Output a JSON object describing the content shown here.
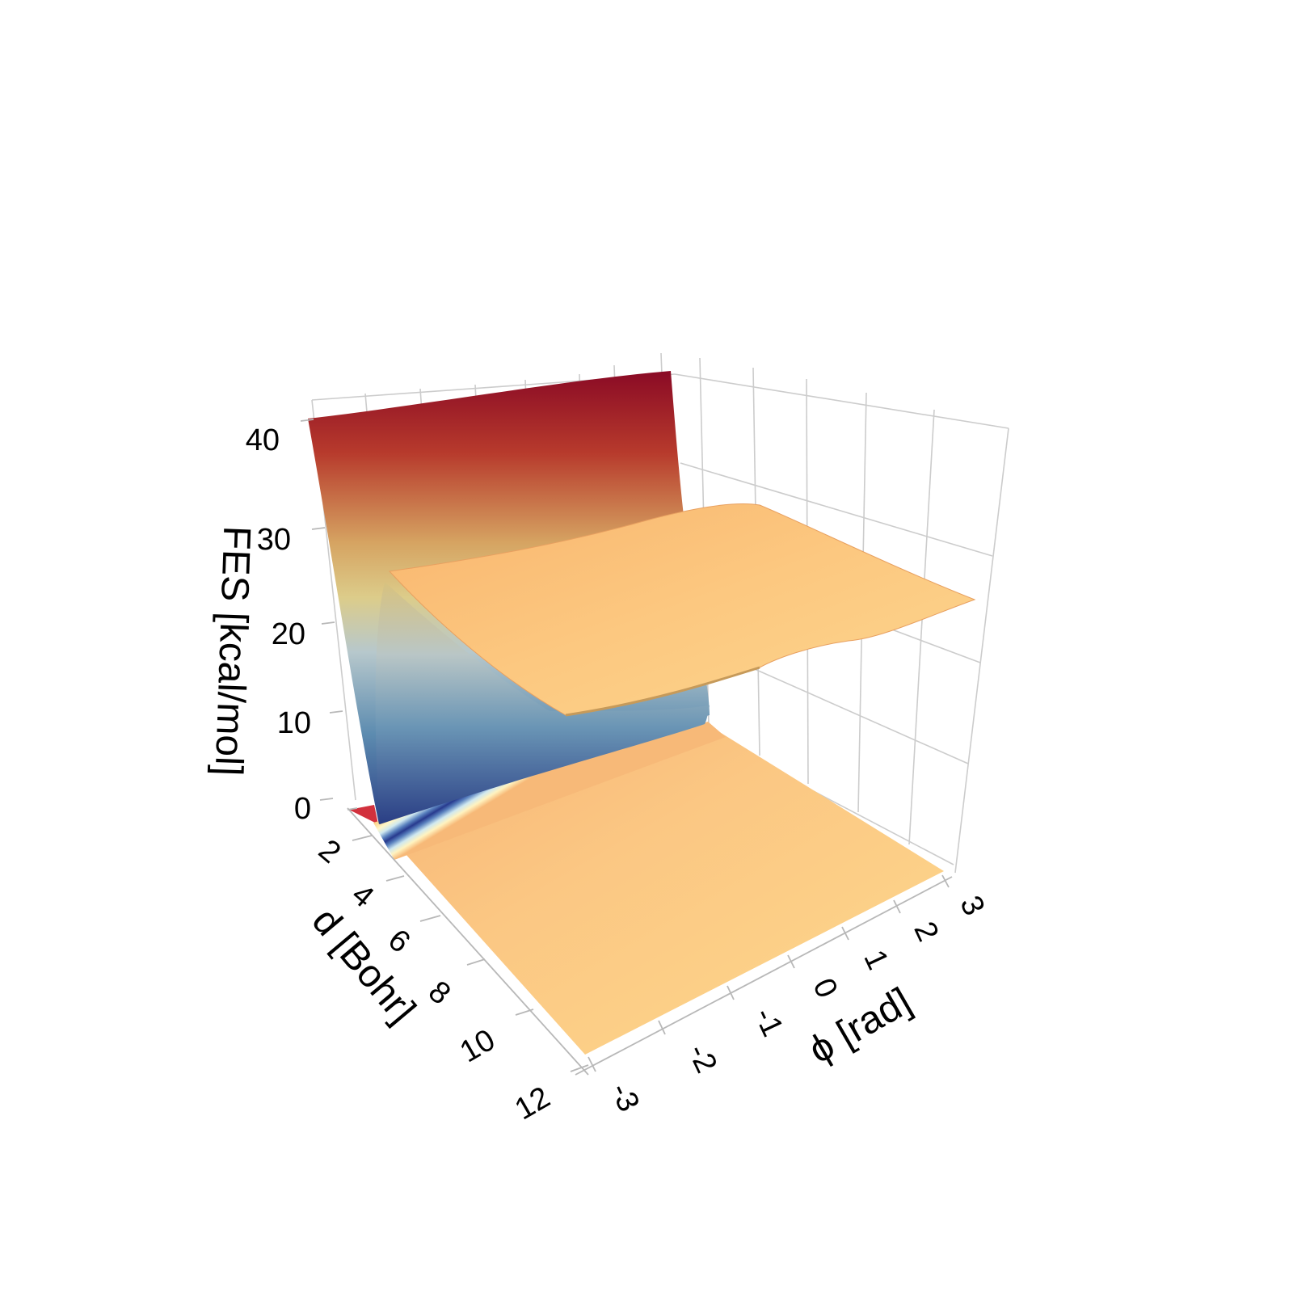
{
  "chart_data": {
    "type": "surface",
    "title": "",
    "axes": {
      "x": {
        "label": "ϕ [rad]",
        "range": [
          -3.14,
          3.14
        ],
        "ticks": [
          -3,
          -2,
          -1,
          0,
          1,
          2,
          3
        ],
        "tick_labels": [
          "-3",
          "-2",
          "-1",
          "0",
          "1",
          "2",
          "3"
        ]
      },
      "y": {
        "label": "d [Bohr]",
        "range": [
          2,
          12
        ],
        "ticks": [
          2,
          4,
          6,
          8,
          10,
          12
        ],
        "tick_labels": [
          "2",
          "4",
          "6",
          "8",
          "10",
          "12"
        ]
      },
      "z": {
        "label": "FES [kcal/mol]",
        "range": [
          0,
          41
        ],
        "ticks": [
          0,
          10,
          20,
          30,
          40
        ],
        "tick_labels": [
          "0",
          "10",
          "20",
          "30",
          "40"
        ]
      }
    },
    "grid": true,
    "colorscale": "RdYlBu_r",
    "colorscale_stops": [
      "#313695",
      "#4575b4",
      "#abd9e9",
      "#ffffbf",
      "#fdae61",
      "#d73027",
      "#a50026"
    ],
    "surface_profile": {
      "d": [
        2.0,
        2.3,
        2.6,
        2.9,
        3.2,
        3.5,
        3.8,
        4.0,
        4.3,
        4.6,
        5.0,
        6.0,
        7.0,
        8.0,
        9.0,
        10.0,
        11.0,
        12.0
      ],
      "fes": [
        41,
        26,
        12,
        3,
        0.3,
        1.5,
        4,
        9,
        15,
        20,
        24,
        25.5,
        26,
        26,
        26,
        26,
        26,
        26
      ]
    },
    "minimum": {
      "d": 3.2,
      "fes": 0.3
    },
    "plateau_fes": 26
  }
}
